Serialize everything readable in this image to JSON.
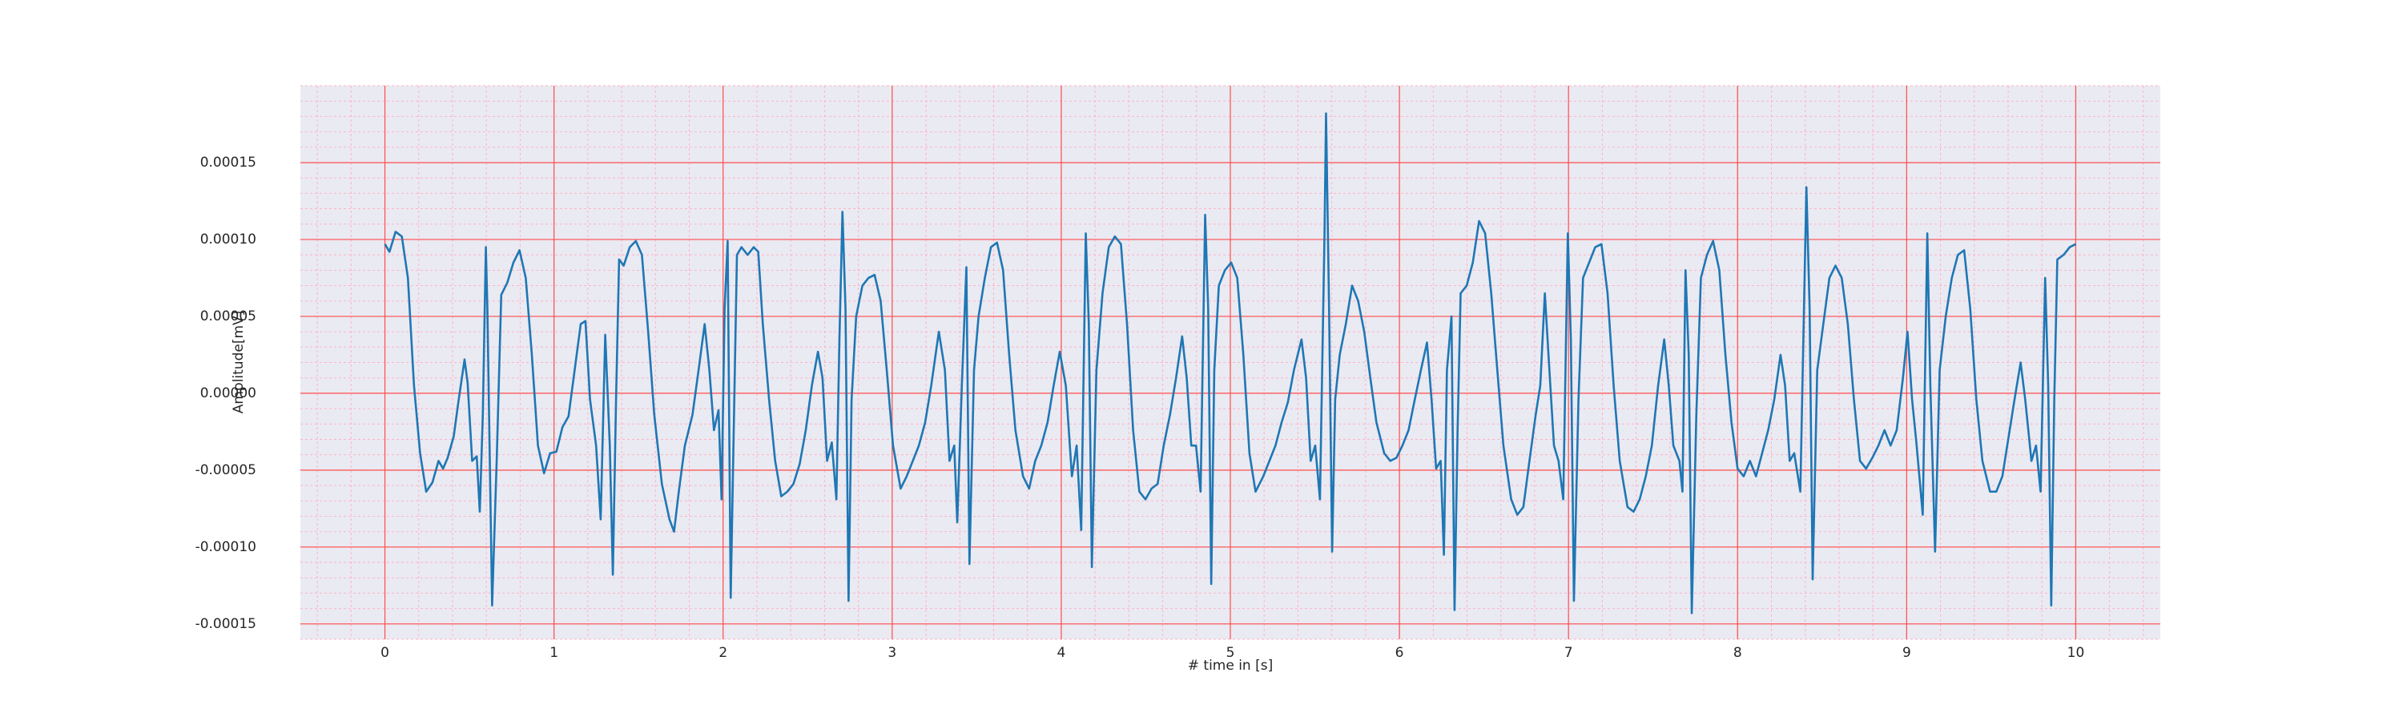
{
  "chart_data": {
    "type": "line",
    "xlabel": "# time in [s]",
    "ylabel": "Amplitude[mV]",
    "xlim": [
      -0.5,
      10.5
    ],
    "ylim": [
      -0.00016,
      0.0002
    ],
    "xticks": [
      0,
      1,
      2,
      3,
      4,
      5,
      6,
      7,
      8,
      9,
      10
    ],
    "yticks": [
      {
        "value": -0.00015,
        "label": "-0.00015"
      },
      {
        "value": -0.0001,
        "label": "-0.00010"
      },
      {
        "value": -5e-05,
        "label": "-0.00005"
      },
      {
        "value": 0,
        "label": "0.00000"
      },
      {
        "value": 5e-05,
        "label": "0.00005"
      },
      {
        "value": 0.0001,
        "label": "0.00010"
      },
      {
        "value": 0.00015,
        "label": "0.00015"
      }
    ],
    "grid": true,
    "grid_color": "#ff4d4d",
    "minor_grid": {
      "x_divisions": 5,
      "y_divisions": 5,
      "color": "#ffb3c6"
    },
    "background": "#eaeaf2",
    "series": [
      {
        "color": "#1f77b4",
        "x": [
          0,
          0.027,
          0.063,
          0.1,
          0.136,
          0.172,
          0.208,
          0.244,
          0.281,
          0.317,
          0.344,
          0.371,
          0.407,
          0.434,
          0.471,
          0.489,
          0.516,
          0.543,
          0.561,
          0.579,
          0.597,
          0.606,
          0.634,
          0.661,
          0.688,
          0.724,
          0.76,
          0.796,
          0.833,
          0.869,
          0.905,
          0.941,
          0.977,
          1.014,
          1.05,
          1.086,
          1.122,
          1.158,
          1.186,
          1.213,
          1.249,
          1.276,
          1.303,
          1.33,
          1.348,
          1.367,
          1.385,
          1.412,
          1.448,
          1.484,
          1.52,
          1.557,
          1.593,
          1.638,
          1.683,
          1.71,
          1.738,
          1.774,
          1.819,
          1.855,
          1.891,
          1.919,
          1.946,
          1.973,
          1.991,
          2.009,
          2.027,
          2.045,
          2.063,
          2.082,
          2.109,
          2.145,
          2.181,
          2.208,
          2.235,
          2.272,
          2.308,
          2.344,
          2.38,
          2.416,
          2.453,
          2.489,
          2.525,
          2.561,
          2.588,
          2.615,
          2.643,
          2.67,
          2.688,
          2.706,
          2.724,
          2.742,
          2.76,
          2.787,
          2.824,
          2.86,
          2.896,
          2.932,
          2.968,
          3.005,
          3.05,
          3.086,
          3.122,
          3.158,
          3.195,
          3.231,
          3.276,
          3.312,
          3.339,
          3.367,
          3.385,
          3.412,
          3.439,
          3.457,
          3.484,
          3.511,
          3.548,
          3.584,
          3.62,
          3.656,
          3.692,
          3.729,
          3.774,
          3.81,
          3.846,
          3.882,
          3.919,
          3.955,
          3.991,
          4.027,
          4.063,
          4.091,
          4.118,
          4.145,
          4.163,
          4.181,
          4.208,
          4.244,
          4.281,
          4.317,
          4.353,
          4.389,
          4.425,
          4.462,
          4.498,
          4.534,
          4.57,
          4.606,
          4.643,
          4.679,
          4.715,
          4.742,
          4.769,
          4.797,
          4.824,
          4.851,
          4.869,
          4.887,
          4.905,
          4.932,
          4.968,
          5.005,
          5.041,
          5.077,
          5.113,
          5.149,
          5.195,
          5.231,
          5.267,
          5.303,
          5.34,
          5.376,
          5.421,
          5.448,
          5.475,
          5.502,
          5.53,
          5.557,
          5.566,
          5.584,
          5.602,
          5.62,
          5.647,
          5.683,
          5.72,
          5.756,
          5.792,
          5.828,
          5.864,
          5.91,
          5.946,
          5.982,
          6.018,
          6.054,
          6.091,
          6.127,
          6.163,
          6.19,
          6.217,
          6.244,
          6.263,
          6.281,
          6.308,
          6.326,
          6.344,
          6.362,
          6.398,
          6.434,
          6.471,
          6.507,
          6.543,
          6.579,
          6.615,
          6.661,
          6.697,
          6.733,
          6.769,
          6.806,
          6.833,
          6.86,
          6.887,
          6.914,
          6.941,
          6.969,
          6.996,
          7.014,
          7.032,
          7.059,
          7.086,
          7.122,
          7.158,
          7.195,
          7.231,
          7.267,
          7.303,
          7.349,
          7.385,
          7.421,
          7.457,
          7.493,
          7.53,
          7.566,
          7.593,
          7.62,
          7.656,
          7.674,
          7.692,
          7.711,
          7.729,
          7.756,
          7.783,
          7.819,
          7.855,
          7.892,
          7.928,
          7.964,
          8,
          8.036,
          8.073,
          8.109,
          8.145,
          8.181,
          8.217,
          8.254,
          8.281,
          8.308,
          8.335,
          8.371,
          8.407,
          8.426,
          8.444,
          8.471,
          8.507,
          8.543,
          8.579,
          8.616,
          8.652,
          8.688,
          8.724,
          8.76,
          8.797,
          8.833,
          8.869,
          8.905,
          8.941,
          8.978,
          9.005,
          9.032,
          9.059,
          9.095,
          9.122,
          9.14,
          9.168,
          9.195,
          9.231,
          9.267,
          9.303,
          9.34,
          9.376,
          9.412,
          9.448,
          9.493,
          9.53,
          9.566,
          9.602,
          9.638,
          9.674,
          9.701,
          9.738,
          9.765,
          9.792,
          9.819,
          9.837,
          9.855,
          9.873,
          9.891,
          9.928,
          9.964,
          10
        ],
        "values": [
          9.7e-05,
          9.2e-05,
          0.000105,
          0.000102,
          7.5e-05,
          5e-06,
          -3.9e-05,
          -6.4e-05,
          -5.8e-05,
          -4.4e-05,
          -4.9e-05,
          -4.2e-05,
          -2.8e-05,
          -6e-06,
          2.2e-05,
          7e-06,
          -4.4e-05,
          -4.1e-05,
          -7.7e-05,
          -1.4e-05,
          9.5e-05,
          5.5e-05,
          -0.000138,
          -4.4e-05,
          6.4e-05,
          7.2e-05,
          8.5e-05,
          9.3e-05,
          7.5e-05,
          2.5e-05,
          -3.4e-05,
          -5.2e-05,
          -3.9e-05,
          -3.8e-05,
          -2.2e-05,
          -1.5e-05,
          1.5e-05,
          4.5e-05,
          4.7e-05,
          -4e-06,
          -3.4e-05,
          -8.2e-05,
          3.8e-05,
          -3.4e-05,
          -0.000118,
          -4e-06,
          8.7e-05,
          8.3e-05,
          9.5e-05,
          9.9e-05,
          9e-05,
          4e-05,
          -1.4e-05,
          -5.9e-05,
          -8.2e-05,
          -9e-05,
          -6.4e-05,
          -3.4e-05,
          -1.4e-05,
          1.5e-05,
          4.5e-05,
          1.5e-05,
          -2.4e-05,
          -1.1e-05,
          -6.9e-05,
          5.5e-05,
          9.9e-05,
          -0.000133,
          -2.4e-05,
          9e-05,
          9.5e-05,
          9e-05,
          9.5e-05,
          9.2e-05,
          4.5e-05,
          -4e-06,
          -4.4e-05,
          -6.7e-05,
          -6.4e-05,
          -5.9e-05,
          -4.6e-05,
          -2.4e-05,
          5e-06,
          2.7e-05,
          1e-05,
          -4.4e-05,
          -3.2e-05,
          -6.9e-05,
          3.5e-05,
          0.000118,
          5.5e-05,
          -0.000135,
          -4e-06,
          5e-05,
          7e-05,
          7.5e-05,
          7.7e-05,
          6e-05,
          1.5e-05,
          -3.4e-05,
          -6.2e-05,
          -5.4e-05,
          -4.4e-05,
          -3.4e-05,
          -1.9e-05,
          5e-06,
          4e-05,
          1.5e-05,
          -4.4e-05,
          -3.4e-05,
          -8.4e-05,
          5e-06,
          8.2e-05,
          -0.000111,
          1.5e-05,
          5e-05,
          7.5e-05,
          9.5e-05,
          9.8e-05,
          8e-05,
          2.5e-05,
          -2.4e-05,
          -5.4e-05,
          -6.2e-05,
          -4.4e-05,
          -3.4e-05,
          -1.9e-05,
          5e-06,
          2.7e-05,
          5e-06,
          -5.4e-05,
          -3.4e-05,
          -8.9e-05,
          0.000104,
          4.5e-05,
          -0.000113,
          1.5e-05,
          6.5e-05,
          9.5e-05,
          0.000102,
          9.7e-05,
          4.5e-05,
          -2.4e-05,
          -6.4e-05,
          -6.9e-05,
          -6.2e-05,
          -5.9e-05,
          -3.4e-05,
          -1.4e-05,
          1e-05,
          3.7e-05,
          1e-05,
          -3.4e-05,
          -3.4e-05,
          -6.4e-05,
          0.000116,
          5.5e-05,
          -0.000124,
          1.5e-05,
          7e-05,
          8e-05,
          8.5e-05,
          7.5e-05,
          2.5e-05,
          -3.9e-05,
          -6.4e-05,
          -5.4e-05,
          -4.4e-05,
          -3.4e-05,
          -1.9e-05,
          -6e-06,
          1.5e-05,
          3.5e-05,
          1e-05,
          -4.4e-05,
          -3.4e-05,
          -6.9e-05,
          0.000104,
          0.000182,
          5.5e-05,
          -0.000103,
          -4e-06,
          2.5e-05,
          4.5e-05,
          7e-05,
          6e-05,
          4e-05,
          1e-05,
          -1.9e-05,
          -3.9e-05,
          -4.4e-05,
          -4.2e-05,
          -3.4e-05,
          -2.4e-05,
          -4e-06,
          1.5e-05,
          3.3e-05,
          -4e-06,
          -4.9e-05,
          -4.4e-05,
          -0.000105,
          1.5e-05,
          5e-05,
          -0.000141,
          -2.4e-05,
          6.5e-05,
          7e-05,
          8.5e-05,
          0.000112,
          0.000104,
          6.5e-05,
          1.5e-05,
          -3.4e-05,
          -6.9e-05,
          -7.9e-05,
          -7.4e-05,
          -4.4e-05,
          -1.4e-05,
          5e-06,
          6.5e-05,
          1.5e-05,
          -3.4e-05,
          -4.4e-05,
          -6.9e-05,
          0.000104,
          3.5e-05,
          -0.000135,
          -4e-06,
          7.5e-05,
          8.5e-05,
          9.5e-05,
          9.7e-05,
          6.5e-05,
          5e-06,
          -4.4e-05,
          -7.4e-05,
          -7.7e-05,
          -6.9e-05,
          -5.4e-05,
          -3.4e-05,
          5e-06,
          3.5e-05,
          5e-06,
          -3.4e-05,
          -4.4e-05,
          -6.4e-05,
          8e-05,
          2.5e-05,
          -0.000143,
          -1.4e-05,
          7.5e-05,
          9e-05,
          9.9e-05,
          8e-05,
          2.5e-05,
          -1.9e-05,
          -4.9e-05,
          -5.4e-05,
          -4.4e-05,
          -5.4e-05,
          -3.9e-05,
          -2.4e-05,
          -4e-06,
          2.5e-05,
          5e-06,
          -4.4e-05,
          -3.9e-05,
          -6.4e-05,
          0.000134,
          5.5e-05,
          -0.000121,
          1.5e-05,
          4.5e-05,
          7.5e-05,
          8.3e-05,
          7.5e-05,
          4.5e-05,
          -4e-06,
          -4.4e-05,
          -4.9e-05,
          -4.2e-05,
          -3.4e-05,
          -2.4e-05,
          -3.4e-05,
          -2.4e-05,
          1e-05,
          4e-05,
          -4e-06,
          -3.4e-05,
          -7.9e-05,
          0.000104,
          5e-06,
          -0.000103,
          1.5e-05,
          5e-05,
          7.5e-05,
          9e-05,
          9.3e-05,
          5.5e-05,
          -4e-06,
          -4.4e-05,
          -6.4e-05,
          -6.4e-05,
          -5.4e-05,
          -2.9e-05,
          -4e-06,
          2e-05,
          -4e-06,
          -4.4e-05,
          -3.4e-05,
          -6.4e-05,
          7.5e-05,
          5e-06,
          -0.000138,
          -4e-06,
          8.7e-05,
          9e-05,
          9.5e-05,
          9.7e-05
        ]
      }
    ]
  }
}
